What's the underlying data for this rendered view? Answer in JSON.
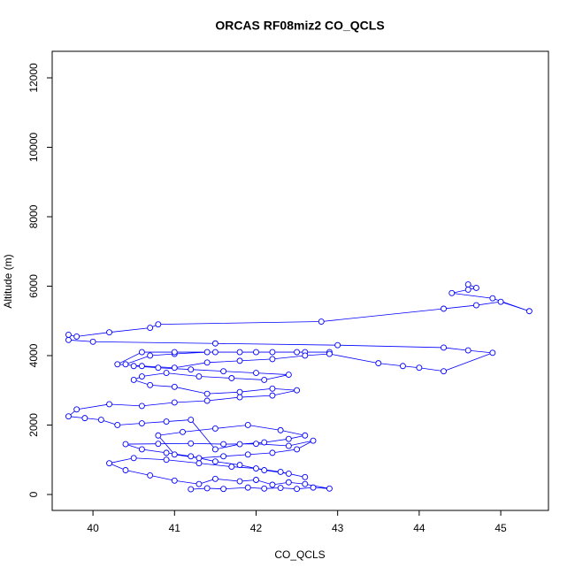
{
  "chart_data": {
    "type": "line-points",
    "title": "ORCAS RF08miz2 CO_QCLS",
    "x_label": "CO_QCLS",
    "y_label": "Altitude (m)",
    "color": "#0000ff",
    "x": [
      41.2,
      41.4,
      41.6,
      41.9,
      42.1,
      42.3,
      42.5,
      42.7,
      42.9,
      42.6,
      42.4,
      42.2,
      42.0,
      41.8,
      41.5,
      41.3,
      41.0,
      40.7,
      40.4,
      40.2,
      40.5,
      40.9,
      41.3,
      41.7,
      42.0,
      42.3,
      42.6,
      42.4,
      42.1,
      41.8,
      41.5,
      41.2,
      40.9,
      40.6,
      40.4,
      40.8,
      41.2,
      41.6,
      42.0,
      42.4,
      42.7,
      42.5,
      42.2,
      41.9,
      41.6,
      41.3,
      41.0,
      40.8,
      41.1,
      41.5,
      41.9,
      42.3,
      42.6,
      42.4,
      42.1,
      41.8,
      41.5,
      41.2,
      40.9,
      40.6,
      40.3,
      40.1,
      39.9,
      39.7,
      39.8,
      40.2,
      40.6,
      41.0,
      41.4,
      41.8,
      42.2,
      42.5,
      42.2,
      41.8,
      41.4,
      41.0,
      40.7,
      40.5,
      40.6,
      40.9,
      41.3,
      41.7,
      42.1,
      42.4,
      42.0,
      41.6,
      41.2,
      40.8,
      40.5,
      40.4,
      40.7,
      41.0,
      41.4,
      41.8,
      42.2,
      42.6,
      42.9,
      42.5,
      42.0,
      41.5,
      41.0,
      40.6,
      40.3,
      40.6,
      41.0,
      41.4,
      41.8,
      42.2,
      42.6,
      42.9,
      43.5,
      43.8,
      44.0,
      44.3,
      44.9,
      44.6,
      44.3,
      43.0,
      41.5,
      40.0,
      39.7,
      39.7,
      39.8,
      40.2,
      40.7,
      40.8,
      42.8,
      44.3,
      44.7,
      45.0,
      45.35,
      44.9,
      44.4,
      44.6,
      44.7,
      44.6
    ],
    "values": [
      150,
      180,
      160,
      200,
      170,
      190,
      160,
      200,
      170,
      300,
      350,
      280,
      420,
      380,
      450,
      300,
      400,
      550,
      700,
      900,
      1050,
      1000,
      900,
      800,
      750,
      650,
      500,
      600,
      700,
      850,
      950,
      1100,
      1200,
      1300,
      1450,
      1460,
      1470,
      1450,
      1460,
      1400,
      1550,
      1300,
      1200,
      1150,
      1100,
      1050,
      1150,
      1700,
      1800,
      1900,
      2000,
      1850,
      1700,
      1600,
      1500,
      1450,
      1300,
      2150,
      2100,
      2050,
      2000,
      2150,
      2200,
      2250,
      2450,
      2600,
      2550,
      2650,
      2700,
      2800,
      2850,
      3000,
      3050,
      2950,
      2900,
      3100,
      3150,
      3300,
      3400,
      3500,
      3400,
      3350,
      3300,
      3450,
      3500,
      3550,
      3600,
      3650,
      3700,
      3750,
      4000,
      4050,
      4100,
      4100,
      4100,
      4100,
      4100,
      4100,
      4100,
      4100,
      4100,
      4100,
      3750,
      3700,
      3650,
      3800,
      3850,
      3900,
      4000,
      4050,
      3780,
      3700,
      3650,
      3550,
      4080,
      4150,
      4230,
      4300,
      4350,
      4400,
      4450,
      4600,
      4550,
      4670,
      4800,
      4900,
      4980,
      5350,
      5450,
      5550,
      5280,
      5650,
      5800,
      5900,
      5950,
      6050
    ],
    "xlim": [
      39.5,
      45.585
    ],
    "ylim": [
      -459,
      12764
    ],
    "xticks": [
      40,
      41,
      42,
      43,
      44,
      45
    ],
    "yticks": [
      0,
      2000,
      4000,
      6000,
      8000,
      10000,
      12000
    ]
  }
}
